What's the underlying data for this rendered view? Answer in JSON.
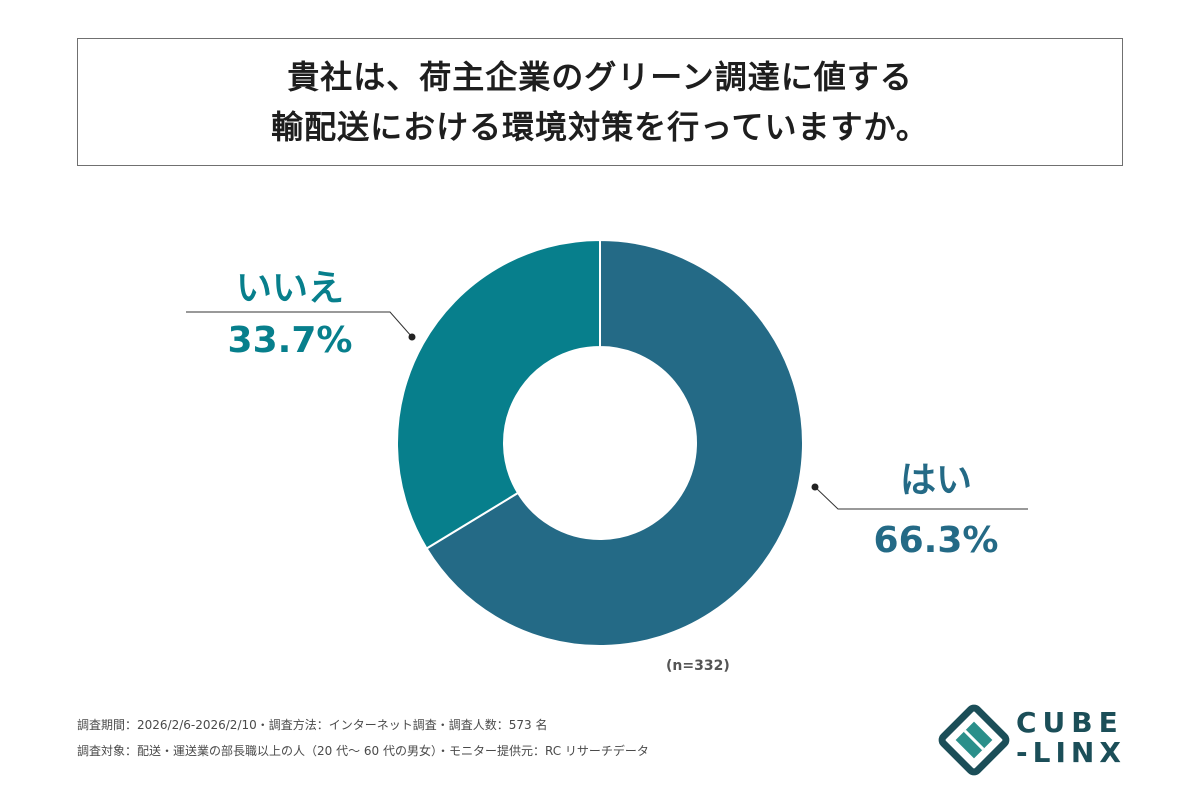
{
  "title": {
    "line1": "貴社は、荷主企業のグリーン調達に値する",
    "line2": "輸配送における環境対策を行っていますか。"
  },
  "chart_data": {
    "type": "pie",
    "donut": true,
    "series": [
      {
        "name": "はい",
        "value": 66.3,
        "label": "66.3%",
        "color": "#246a86"
      },
      {
        "name": "いいえ",
        "value": 33.7,
        "label": "33.7%",
        "color": "#077f8c"
      }
    ],
    "legend": "callouts",
    "sample": "(n=332)"
  },
  "footer": {
    "line1": "調査期間：2026/2/6-2026/2/10・調査方法：インターネット調査・調査人数：573 名",
    "line2": "調査対象：配送・運送業の部長職以上の人（20 代〜 60 代の男女）・モニター提供元：RC リサーチデータ"
  },
  "logo": {
    "line1": "CUBE",
    "line2": "-LINX",
    "color": "#1b4e58",
    "accent": "#2a8f8a"
  }
}
